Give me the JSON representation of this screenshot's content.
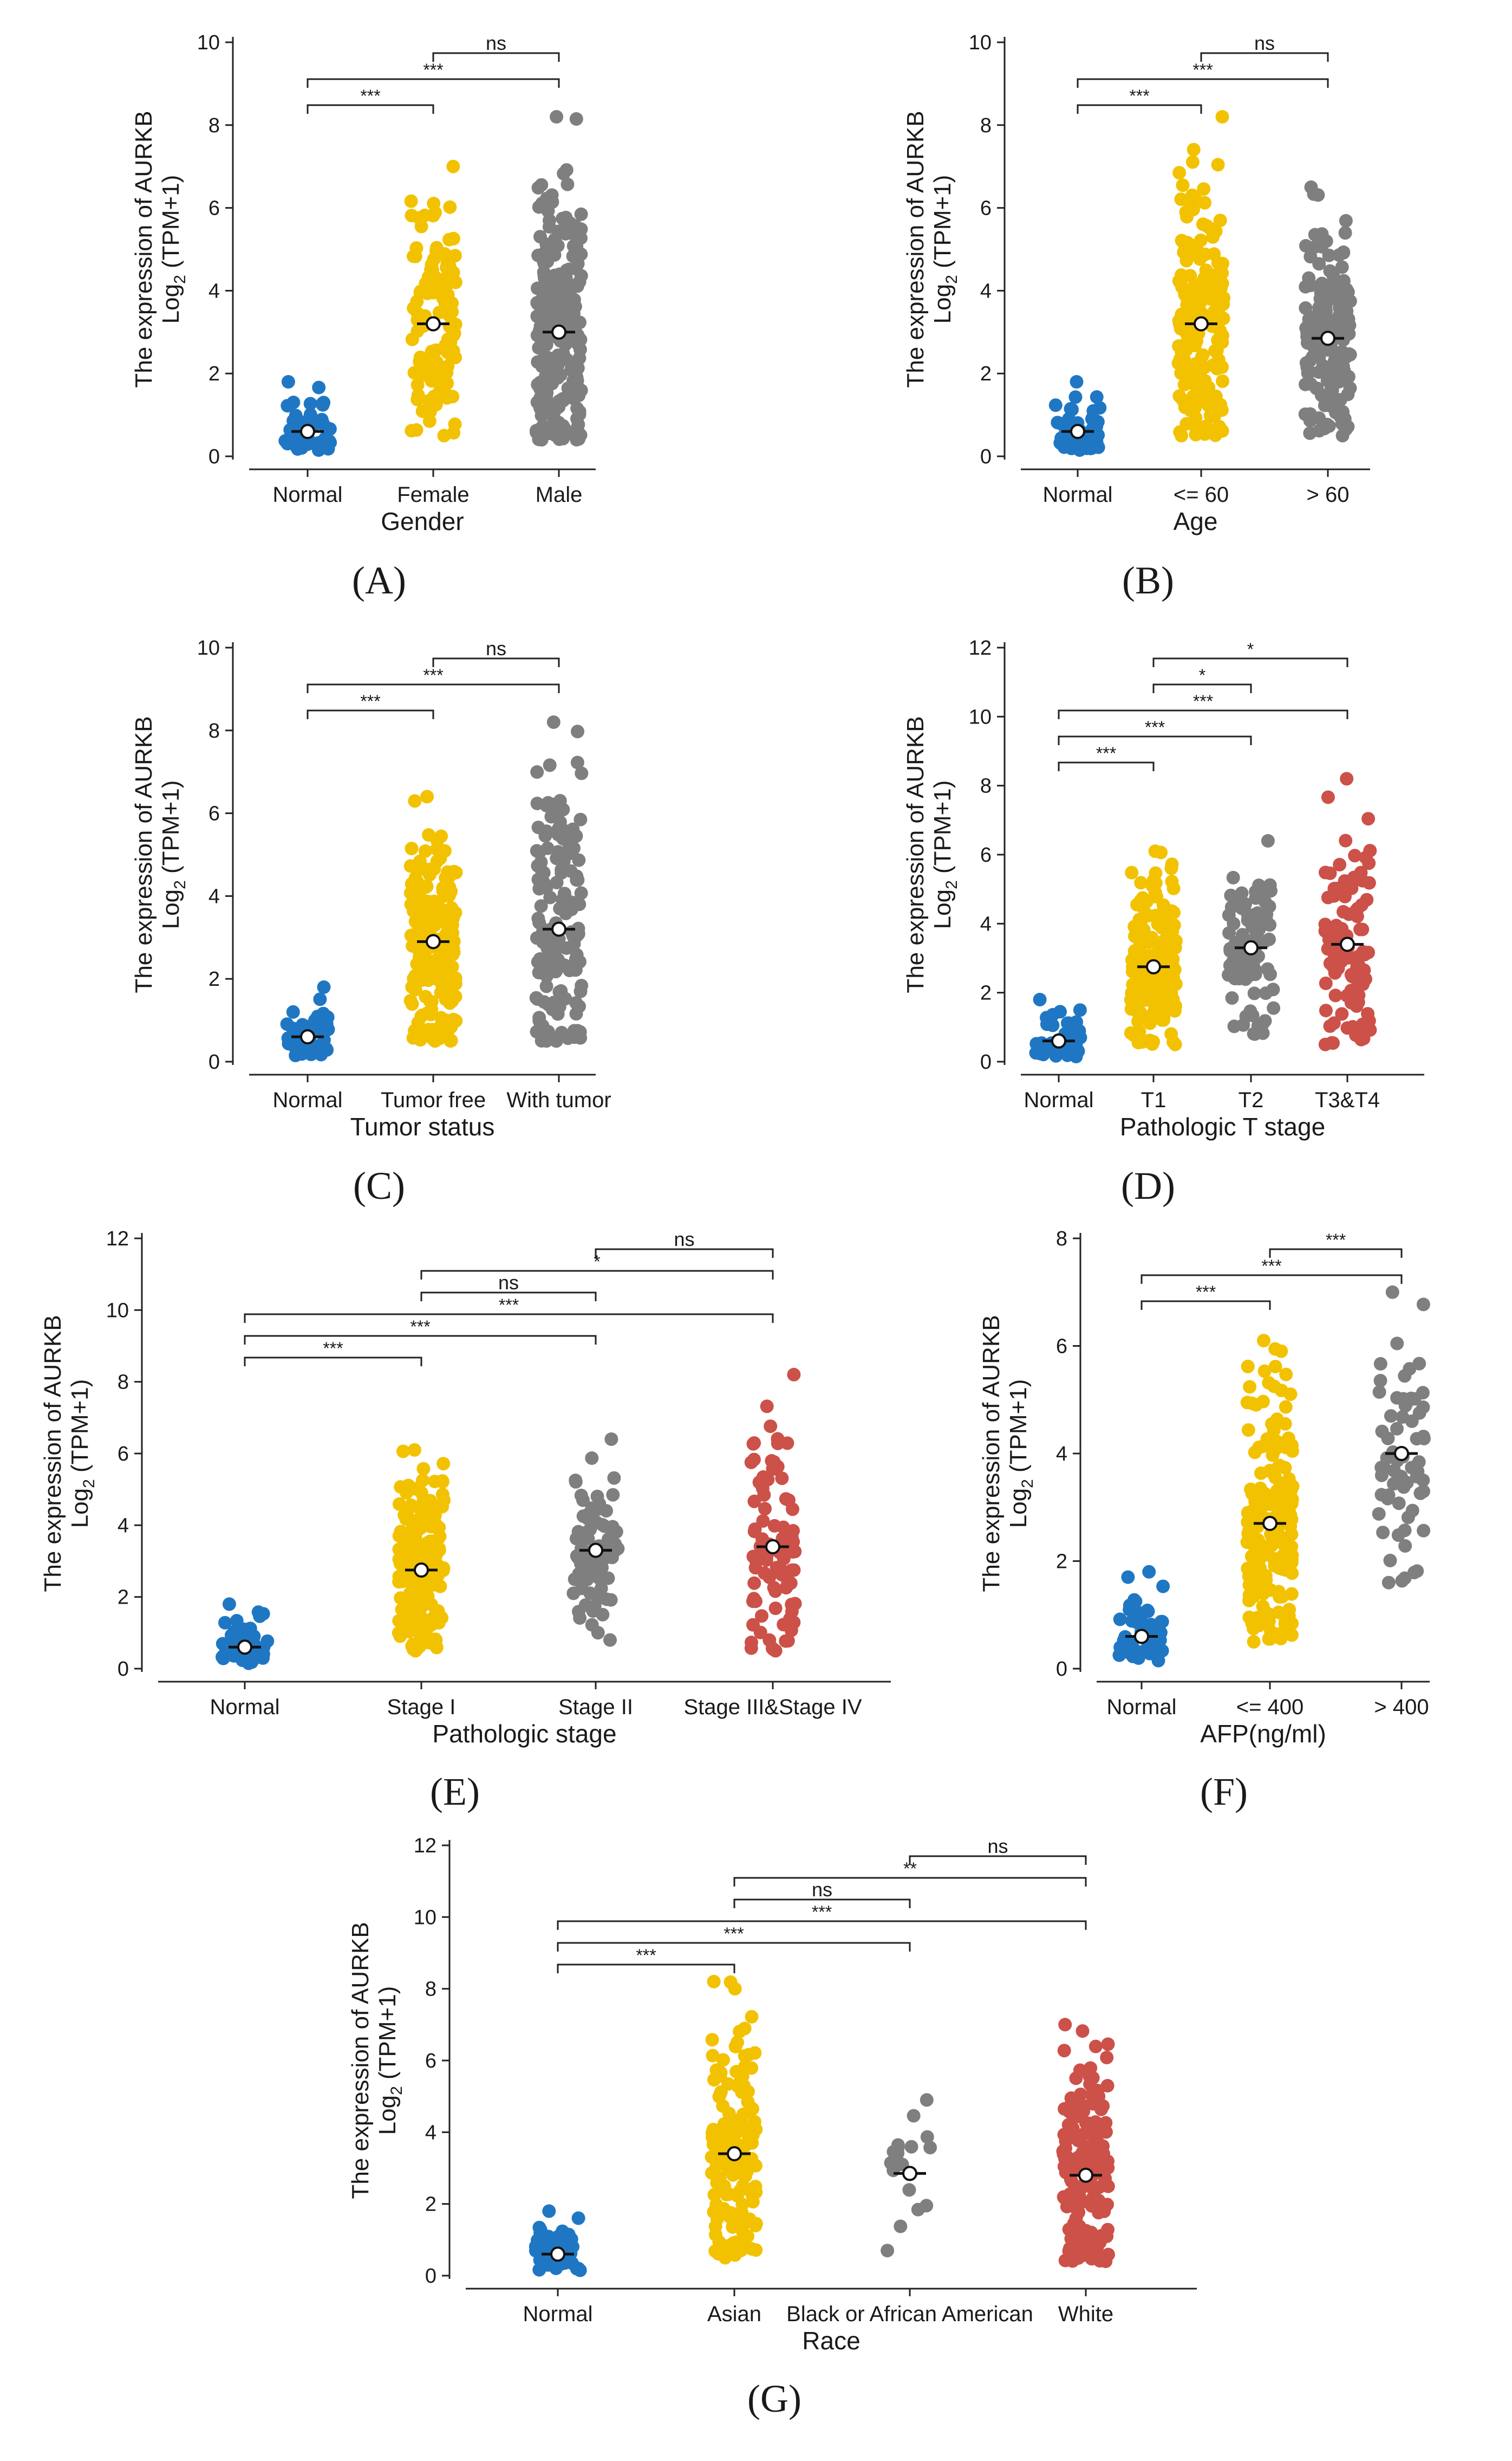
{
  "figure": {
    "gene": "AURKB",
    "ylabel_line1": "The expression of AURKB",
    "ylabel_line2_prefix": "Log",
    "ylabel_line2_sub": "2",
    "ylabel_line2_suffix": " (TPM+1)",
    "colors": {
      "Normal": "#1f77c4",
      "yellow": "#f2c200",
      "gray": "#7f7f7f",
      "red": "#cc5148"
    }
  },
  "chart_data": [
    {
      "type": "scatter",
      "panel": "(A)",
      "xlabel": "Gender",
      "ylim": [
        0,
        10
      ],
      "yticks": [
        0,
        2,
        4,
        6,
        8,
        10
      ],
      "categories": [
        "Normal",
        "Female",
        "Male"
      ],
      "groups": [
        {
          "name": "Normal",
          "color": "#1f77c4",
          "median": 0.6,
          "min": 0.15,
          "max": 1.8,
          "n": 50
        },
        {
          "name": "Female",
          "color": "#f2c200",
          "median": 3.2,
          "min": 0.5,
          "max": 7.0,
          "n": 120
        },
        {
          "name": "Male",
          "color": "#7f7f7f",
          "median": 3.0,
          "min": 0.4,
          "max": 8.2,
          "n": 250
        }
      ],
      "comparisons": [
        {
          "from": "Female",
          "to": "Male",
          "label": "ns"
        },
        {
          "from": "Normal",
          "to": "Male",
          "label": "***"
        },
        {
          "from": "Normal",
          "to": "Female",
          "label": "***"
        }
      ]
    },
    {
      "type": "scatter",
      "panel": "(B)",
      "xlabel": "Age",
      "ylim": [
        0,
        10
      ],
      "yticks": [
        0,
        2,
        4,
        6,
        8,
        10
      ],
      "categories": [
        "Normal",
        "<= 60",
        "> 60"
      ],
      "groups": [
        {
          "name": "Normal",
          "color": "#1f77c4",
          "median": 0.6,
          "min": 0.15,
          "max": 1.8,
          "n": 50
        },
        {
          "name": "<= 60",
          "color": "#f2c200",
          "median": 3.2,
          "min": 0.5,
          "max": 8.2,
          "n": 200
        },
        {
          "name": "> 60",
          "color": "#7f7f7f",
          "median": 2.85,
          "min": 0.5,
          "max": 6.5,
          "n": 170
        }
      ],
      "comparisons": [
        {
          "from": "<= 60",
          "to": "> 60",
          "label": "ns"
        },
        {
          "from": "Normal",
          "to": "> 60",
          "label": "***"
        },
        {
          "from": "Normal",
          "to": "<= 60",
          "label": "***"
        }
      ]
    },
    {
      "type": "scatter",
      "panel": "(C)",
      "xlabel": "Tumor status",
      "ylim": [
        0,
        10
      ],
      "yticks": [
        0,
        2,
        4,
        6,
        8,
        10
      ],
      "categories": [
        "Normal",
        "Tumor free",
        "With tumor"
      ],
      "groups": [
        {
          "name": "Normal",
          "color": "#1f77c4",
          "median": 0.6,
          "min": 0.15,
          "max": 1.8,
          "n": 50
        },
        {
          "name": "Tumor free",
          "color": "#f2c200",
          "median": 2.9,
          "min": 0.5,
          "max": 6.4,
          "n": 200
        },
        {
          "name": "With tumor",
          "color": "#7f7f7f",
          "median": 3.2,
          "min": 0.5,
          "max": 8.2,
          "n": 150
        }
      ],
      "comparisons": [
        {
          "from": "Tumor free",
          "to": "With tumor",
          "label": "ns"
        },
        {
          "from": "Normal",
          "to": "With tumor",
          "label": "***"
        },
        {
          "from": "Normal",
          "to": "Tumor free",
          "label": "***"
        }
      ]
    },
    {
      "type": "scatter",
      "panel": "(D)",
      "xlabel": "Pathologic T stage",
      "ylim": [
        0,
        12
      ],
      "yticks": [
        0,
        2,
        4,
        6,
        8,
        10,
        12
      ],
      "categories": [
        "Normal",
        "T1",
        "T2",
        "T3&T4"
      ],
      "groups": [
        {
          "name": "Normal",
          "color": "#1f77c4",
          "median": 0.6,
          "min": 0.15,
          "max": 1.8,
          "n": 50
        },
        {
          "name": "T1",
          "color": "#f2c200",
          "median": 2.75,
          "min": 0.5,
          "max": 6.1,
          "n": 180
        },
        {
          "name": "T2",
          "color": "#7f7f7f",
          "median": 3.3,
          "min": 0.8,
          "max": 6.4,
          "n": 95
        },
        {
          "name": "T3&T4",
          "color": "#cc5148",
          "median": 3.4,
          "min": 0.5,
          "max": 8.2,
          "n": 100
        }
      ],
      "comparisons": [
        {
          "from": "T1",
          "to": "T3&T4",
          "label": "*"
        },
        {
          "from": "T1",
          "to": "T2",
          "label": "*"
        },
        {
          "from": "Normal",
          "to": "T3&T4",
          "label": "***"
        },
        {
          "from": "Normal",
          "to": "T2",
          "label": "***"
        },
        {
          "from": "Normal",
          "to": "T1",
          "label": "***"
        }
      ]
    },
    {
      "type": "scatter",
      "panel": "(E)",
      "xlabel": "Pathologic stage",
      "ylim": [
        0,
        12
      ],
      "yticks": [
        0,
        2,
        4,
        6,
        8,
        10,
        12
      ],
      "categories": [
        "Normal",
        "Stage I",
        "Stage II",
        "Stage III&Stage IV"
      ],
      "groups": [
        {
          "name": "Normal",
          "color": "#1f77c4",
          "median": 0.6,
          "min": 0.15,
          "max": 1.8,
          "n": 50
        },
        {
          "name": "Stage I",
          "color": "#f2c200",
          "median": 2.75,
          "min": 0.5,
          "max": 6.1,
          "n": 170
        },
        {
          "name": "Stage II",
          "color": "#7f7f7f",
          "median": 3.3,
          "min": 0.8,
          "max": 6.4,
          "n": 85
        },
        {
          "name": "Stage III&Stage IV",
          "color": "#cc5148",
          "median": 3.4,
          "min": 0.5,
          "max": 8.2,
          "n": 90
        }
      ],
      "comparisons": [
        {
          "from": "Stage II",
          "to": "Stage III&Stage IV",
          "label": "ns"
        },
        {
          "from": "Stage I",
          "to": "Stage III&Stage IV",
          "label": "*"
        },
        {
          "from": "Stage I",
          "to": "Stage II",
          "label": "ns"
        },
        {
          "from": "Normal",
          "to": "Stage III&Stage IV",
          "label": "***"
        },
        {
          "from": "Normal",
          "to": "Stage II",
          "label": "***"
        },
        {
          "from": "Normal",
          "to": "Stage I",
          "label": "***"
        }
      ]
    },
    {
      "type": "scatter",
      "panel": "(F)",
      "xlabel": "AFP(ng/ml)",
      "ylim": [
        0,
        8
      ],
      "yticks": [
        0,
        2,
        4,
        6,
        8
      ],
      "categories": [
        "Normal",
        "<= 400",
        "> 400"
      ],
      "groups": [
        {
          "name": "Normal",
          "color": "#1f77c4",
          "median": 0.6,
          "min": 0.15,
          "max": 1.8,
          "n": 50
        },
        {
          "name": "<= 400",
          "color": "#f2c200",
          "median": 2.7,
          "min": 0.5,
          "max": 6.1,
          "n": 210
        },
        {
          "name": "> 400",
          "color": "#7f7f7f",
          "median": 4.0,
          "min": 1.6,
          "max": 7.0,
          "n": 65
        }
      ],
      "comparisons": [
        {
          "from": "<= 400",
          "to": "> 400",
          "label": "***"
        },
        {
          "from": "Normal",
          "to": "> 400",
          "label": "***"
        },
        {
          "from": "Normal",
          "to": "<= 400",
          "label": "***"
        }
      ]
    },
    {
      "type": "scatter",
      "panel": "(G)",
      "xlabel": "Race",
      "ylim": [
        0,
        12
      ],
      "yticks": [
        0,
        2,
        4,
        6,
        8,
        10,
        12
      ],
      "categories": [
        "Normal",
        "Asian",
        "Black or African American",
        "White"
      ],
      "groups": [
        {
          "name": "Normal",
          "color": "#1f77c4",
          "median": 0.6,
          "min": 0.15,
          "max": 1.8,
          "n": 50
        },
        {
          "name": "Asian",
          "color": "#f2c200",
          "median": 3.4,
          "min": 0.5,
          "max": 8.2,
          "n": 160
        },
        {
          "name": "Black or African American",
          "color": "#7f7f7f",
          "median": 2.85,
          "min": 0.7,
          "max": 4.9,
          "n": 17
        },
        {
          "name": "White",
          "color": "#cc5148",
          "median": 2.8,
          "min": 0.4,
          "max": 7.0,
          "n": 180
        }
      ],
      "comparisons": [
        {
          "from": "Black or African American",
          "to": "White",
          "label": "ns"
        },
        {
          "from": "Asian",
          "to": "White",
          "label": "**"
        },
        {
          "from": "Asian",
          "to": "Black or African American",
          "label": "ns"
        },
        {
          "from": "Normal",
          "to": "White",
          "label": "***"
        },
        {
          "from": "Normal",
          "to": "Black or African American",
          "label": "***"
        },
        {
          "from": "Normal",
          "to": "Asian",
          "label": "***"
        }
      ]
    }
  ]
}
